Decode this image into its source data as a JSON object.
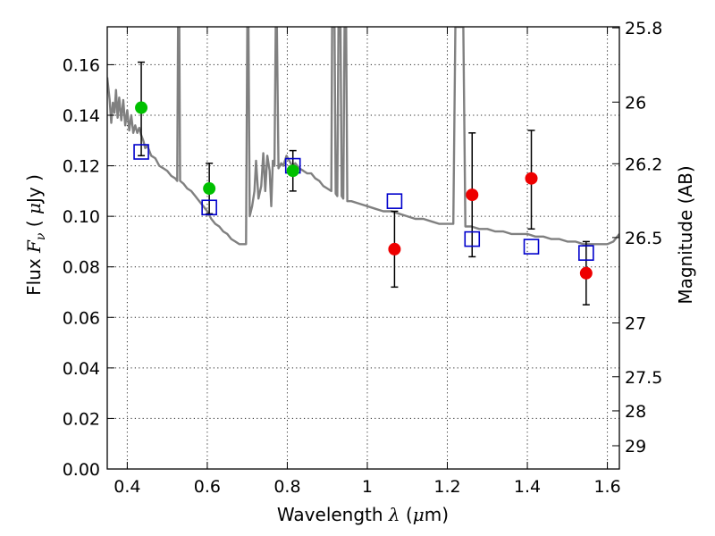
{
  "chart_data": {
    "type": "scatter",
    "title": "",
    "xlabel": {
      "pre": "Wavelength  ",
      "sym": "λ",
      "post": " (",
      "mu": "μ",
      "unit": "m)"
    },
    "ylabel": {
      "pre": "Flux  ",
      "sym": "F",
      "sub": "ν",
      "post": "  ( ",
      "mu": "μ",
      "unit": "Jy )"
    },
    "y2label": "Magnitude (AB)",
    "xlim": [
      0.35,
      1.63
    ],
    "ylim": [
      0.0,
      0.175
    ],
    "grid": true,
    "x_ticks": [
      0.4,
      0.6,
      0.8,
      1.0,
      1.2,
      1.4,
      1.6
    ],
    "x_tick_labels": [
      "0.4",
      "0.6",
      "0.8",
      "1",
      "1.2",
      "1.4",
      "1.6"
    ],
    "y_ticks": [
      0.0,
      0.02,
      0.04,
      0.06,
      0.08,
      0.1,
      0.12,
      0.14,
      0.16
    ],
    "y_tick_labels": [
      "0.00",
      "0.02",
      "0.04",
      "0.06",
      "0.08",
      "0.10",
      "0.12",
      "0.14",
      "0.16"
    ],
    "y2_ticks": [
      {
        "label": "25.8",
        "flux": 0.1746
      },
      {
        "label": "26",
        "flux": 0.1452
      },
      {
        "label": "26.2",
        "flux": 0.1208
      },
      {
        "label": "26.5",
        "flux": 0.0916
      },
      {
        "label": "27",
        "flux": 0.0578
      },
      {
        "label": "27.5",
        "flux": 0.0365
      },
      {
        "label": "28",
        "flux": 0.023
      },
      {
        "label": "29",
        "flux": 0.0092
      }
    ],
    "series": [
      {
        "name": "model-spectrum",
        "kind": "line",
        "color": "#808080",
        "points": [
          [
            0.35,
            0.155
          ],
          [
            0.356,
            0.146
          ],
          [
            0.36,
            0.137
          ],
          [
            0.364,
            0.145
          ],
          [
            0.368,
            0.141
          ],
          [
            0.372,
            0.15
          ],
          [
            0.376,
            0.139
          ],
          [
            0.38,
            0.147
          ],
          [
            0.385,
            0.138
          ],
          [
            0.39,
            0.146
          ],
          [
            0.395,
            0.136
          ],
          [
            0.4,
            0.142
          ],
          [
            0.405,
            0.134
          ],
          [
            0.41,
            0.14
          ],
          [
            0.415,
            0.133
          ],
          [
            0.42,
            0.136
          ],
          [
            0.425,
            0.133
          ],
          [
            0.43,
            0.135
          ],
          [
            0.435,
            0.132
          ],
          [
            0.44,
            0.13
          ],
          [
            0.445,
            0.127
          ],
          [
            0.45,
            0.128
          ],
          [
            0.46,
            0.124
          ],
          [
            0.47,
            0.123
          ],
          [
            0.48,
            0.12
          ],
          [
            0.49,
            0.119
          ],
          [
            0.5,
            0.118
          ],
          [
            0.51,
            0.116
          ],
          [
            0.52,
            0.115
          ],
          [
            0.525,
            0.114
          ],
          [
            0.527,
            0.175
          ],
          [
            0.53,
            0.175
          ],
          [
            0.532,
            0.114
          ],
          [
            0.54,
            0.113
          ],
          [
            0.55,
            0.111
          ],
          [
            0.56,
            0.11
          ],
          [
            0.57,
            0.108
          ],
          [
            0.58,
            0.106
          ],
          [
            0.59,
            0.104
          ],
          [
            0.6,
            0.102
          ],
          [
            0.61,
            0.099
          ],
          [
            0.62,
            0.097
          ],
          [
            0.63,
            0.096
          ],
          [
            0.64,
            0.094
          ],
          [
            0.65,
            0.093
          ],
          [
            0.66,
            0.091
          ],
          [
            0.67,
            0.09
          ],
          [
            0.68,
            0.089
          ],
          [
            0.69,
            0.089
          ],
          [
            0.697,
            0.089
          ],
          [
            0.7,
            0.175
          ],
          [
            0.703,
            0.175
          ],
          [
            0.706,
            0.1
          ],
          [
            0.712,
            0.104
          ],
          [
            0.718,
            0.11
          ],
          [
            0.722,
            0.122
          ],
          [
            0.728,
            0.107
          ],
          [
            0.735,
            0.112
          ],
          [
            0.74,
            0.125
          ],
          [
            0.745,
            0.11
          ],
          [
            0.75,
            0.124
          ],
          [
            0.756,
            0.118
          ],
          [
            0.76,
            0.104
          ],
          [
            0.764,
            0.122
          ],
          [
            0.768,
            0.12
          ],
          [
            0.771,
            0.175
          ],
          [
            0.774,
            0.175
          ],
          [
            0.778,
            0.119
          ],
          [
            0.785,
            0.121
          ],
          [
            0.79,
            0.12
          ],
          [
            0.798,
            0.124
          ],
          [
            0.805,
            0.122
          ],
          [
            0.812,
            0.12
          ],
          [
            0.82,
            0.121
          ],
          [
            0.83,
            0.119
          ],
          [
            0.84,
            0.118
          ],
          [
            0.85,
            0.117
          ],
          [
            0.86,
            0.117
          ],
          [
            0.87,
            0.115
          ],
          [
            0.88,
            0.114
          ],
          [
            0.89,
            0.112
          ],
          [
            0.9,
            0.111
          ],
          [
            0.91,
            0.11
          ],
          [
            0.912,
            0.175
          ],
          [
            0.918,
            0.175
          ],
          [
            0.921,
            0.109
          ],
          [
            0.925,
            0.108
          ],
          [
            0.928,
            0.175
          ],
          [
            0.933,
            0.175
          ],
          [
            0.936,
            0.108
          ],
          [
            0.94,
            0.107
          ],
          [
            0.943,
            0.175
          ],
          [
            0.947,
            0.175
          ],
          [
            0.95,
            0.106
          ],
          [
            0.96,
            0.106
          ],
          [
            0.98,
            0.105
          ],
          [
            1.0,
            0.104
          ],
          [
            1.02,
            0.103
          ],
          [
            1.04,
            0.102
          ],
          [
            1.06,
            0.102
          ],
          [
            1.08,
            0.101
          ],
          [
            1.1,
            0.1
          ],
          [
            1.12,
            0.099
          ],
          [
            1.14,
            0.099
          ],
          [
            1.16,
            0.098
          ],
          [
            1.18,
            0.097
          ],
          [
            1.2,
            0.097
          ],
          [
            1.215,
            0.097
          ],
          [
            1.22,
            0.175
          ],
          [
            1.24,
            0.175
          ],
          [
            1.245,
            0.096
          ],
          [
            1.26,
            0.096
          ],
          [
            1.28,
            0.095
          ],
          [
            1.3,
            0.095
          ],
          [
            1.32,
            0.094
          ],
          [
            1.34,
            0.094
          ],
          [
            1.36,
            0.093
          ],
          [
            1.38,
            0.093
          ],
          [
            1.4,
            0.093
          ],
          [
            1.42,
            0.092
          ],
          [
            1.44,
            0.092
          ],
          [
            1.46,
            0.091
          ],
          [
            1.48,
            0.091
          ],
          [
            1.5,
            0.09
          ],
          [
            1.52,
            0.09
          ],
          [
            1.54,
            0.089
          ],
          [
            1.56,
            0.089
          ],
          [
            1.58,
            0.089
          ],
          [
            1.6,
            0.089
          ],
          [
            1.615,
            0.09
          ],
          [
            1.63,
            0.093
          ]
        ]
      },
      {
        "name": "model-photometry",
        "kind": "open-square",
        "color": "#0000cc",
        "points": [
          [
            0.435,
            0.1255
          ],
          [
            0.605,
            0.1035
          ],
          [
            0.814,
            0.12
          ],
          [
            1.068,
            0.106
          ],
          [
            1.262,
            0.091
          ],
          [
            1.41,
            0.088
          ],
          [
            1.547,
            0.0855
          ]
        ]
      },
      {
        "name": "observed-green",
        "kind": "filled-circle",
        "color": "#00c000",
        "points": [
          [
            0.435,
            0.143
          ],
          [
            0.605,
            0.111
          ],
          [
            0.814,
            0.118
          ]
        ],
        "errors": [
          [
            0.124,
            0.161
          ],
          [
            0.101,
            0.121
          ],
          [
            0.11,
            0.126
          ]
        ]
      },
      {
        "name": "observed-red",
        "kind": "filled-circle",
        "color": "#ee0000",
        "points": [
          [
            1.068,
            0.087
          ],
          [
            1.262,
            0.1085
          ],
          [
            1.41,
            0.115
          ],
          [
            1.547,
            0.0775
          ]
        ],
        "errors": [
          [
            0.072,
            0.102
          ],
          [
            0.084,
            0.133
          ],
          [
            0.095,
            0.134
          ],
          [
            0.065,
            0.09
          ]
        ]
      }
    ]
  }
}
